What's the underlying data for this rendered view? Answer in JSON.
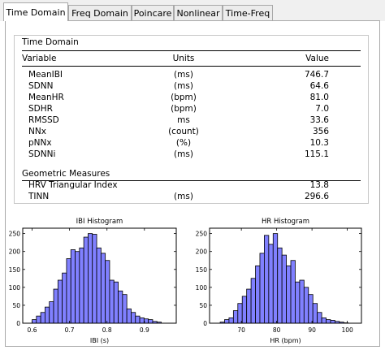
{
  "tabs": [
    {
      "label": "Time Domain",
      "active": true
    },
    {
      "label": "Freq Domain",
      "active": false
    },
    {
      "label": "Poincare",
      "active": false
    },
    {
      "label": "Nonlinear",
      "active": false
    },
    {
      "label": "Time-Freq",
      "active": false
    }
  ],
  "time_domain": {
    "title": "Time Domain",
    "headers": {
      "variable": "Variable",
      "units": "Units",
      "value": "Value"
    },
    "rows": [
      {
        "variable": "MeanIBI",
        "units": "(ms)",
        "value": "746.7"
      },
      {
        "variable": "SDNN",
        "units": "(ms)",
        "value": "64.6"
      },
      {
        "variable": "MeanHR",
        "units": "(bpm)",
        "value": "81.0"
      },
      {
        "variable": "SDHR",
        "units": "(bpm)",
        "value": "7.0"
      },
      {
        "variable": "RMSSD",
        "units": "ms",
        "value": "33.6"
      },
      {
        "variable": "NNx",
        "units": "(count)",
        "value": "356"
      },
      {
        "variable": "pNNx",
        "units": "(%)",
        "value": "10.3"
      },
      {
        "variable": "SDNNi",
        "units": "(ms)",
        "value": "115.1"
      }
    ],
    "geometric_title": "Geometric Measures",
    "geometric_rows": [
      {
        "variable": "HRV Triangular Index",
        "units": "",
        "value": "13.8"
      },
      {
        "variable": "TINN",
        "units": "(ms)",
        "value": "296.6"
      }
    ]
  },
  "colors": {
    "bar_fill": "#8080ff",
    "bar_stroke": "#000000"
  },
  "chart_data": [
    {
      "type": "bar",
      "title": "IBI Histogram",
      "xlabel": "IBI (s)",
      "ylabel": "",
      "xlim": [
        0.575,
        0.985
      ],
      "ylim": [
        0,
        265
      ],
      "xticks": [
        0.6,
        0.7,
        0.8,
        0.9
      ],
      "xtick_labels": [
        "0.6",
        "0.7",
        "0.8",
        "0.9"
      ],
      "yticks": [
        0,
        50,
        100,
        150,
        200,
        250
      ],
      "ytick_labels": [
        "0",
        "50",
        "100",
        "150",
        "200",
        "250"
      ],
      "bin_start": 0.6,
      "bin_width": 0.0115,
      "values": [
        10,
        20,
        30,
        45,
        60,
        95,
        120,
        140,
        180,
        205,
        200,
        210,
        240,
        250,
        248,
        210,
        195,
        175,
        120,
        115,
        90,
        80,
        40,
        30,
        20,
        15,
        12,
        10,
        5,
        3
      ]
    },
    {
      "type": "bar",
      "title": "HR Histogram",
      "xlabel": "HR (bpm)",
      "ylabel": "",
      "xlim": [
        61,
        104
      ],
      "ylim": [
        0,
        265
      ],
      "xticks": [
        70,
        80,
        90,
        100
      ],
      "xtick_labels": [
        "70",
        "80",
        "90",
        "100"
      ],
      "yticks": [
        0,
        50,
        100,
        150,
        200,
        250
      ],
      "ytick_labels": [
        "0",
        "50",
        "100",
        "150",
        "200",
        "250"
      ],
      "bin_start": 64,
      "bin_width": 1.25,
      "values": [
        3,
        10,
        15,
        35,
        55,
        75,
        95,
        125,
        160,
        195,
        245,
        220,
        250,
        210,
        190,
        160,
        175,
        115,
        120,
        100,
        80,
        55,
        30,
        15,
        10,
        8,
        5,
        3,
        1
      ]
    }
  ]
}
